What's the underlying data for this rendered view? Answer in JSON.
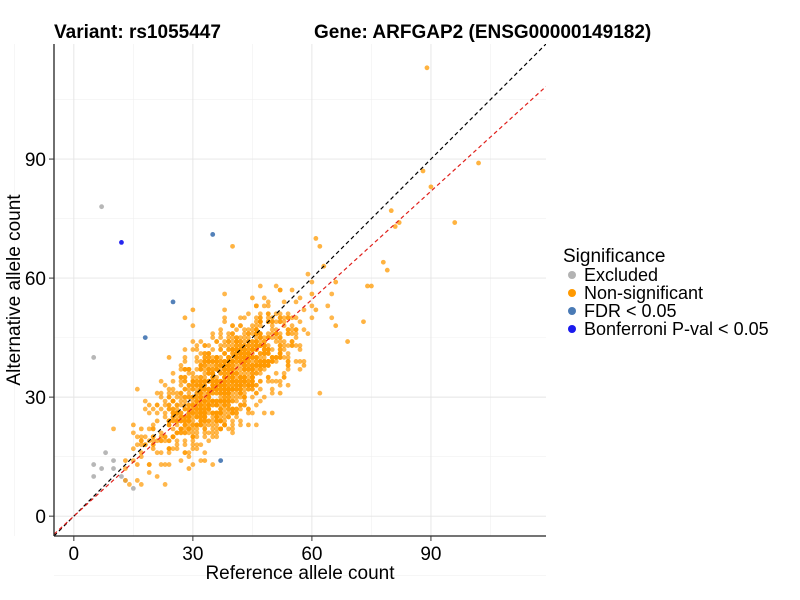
{
  "chart_data": {
    "type": "scatter",
    "title_left": "Variant: rs1055447",
    "title_right": "Gene: ARFGAP2 (ENSG00000149182)",
    "xlabel": "Reference allele count",
    "ylabel": "Alternative allele count",
    "xlim": [
      -5,
      119
    ],
    "ylim": [
      -5,
      119
    ],
    "xticks": [
      0,
      30,
      60,
      90
    ],
    "yticks": [
      0,
      30,
      60,
      90
    ],
    "grid": true,
    "legend": {
      "title": "Significance",
      "placement": "right",
      "entries": [
        {
          "label": "Excluded",
          "color": "#b3b3b3"
        },
        {
          "label": "Non-significant",
          "color": "#ff9900"
        },
        {
          "label": "FDR < 0.05",
          "color": "#4a7ab5"
        },
        {
          "label": "Bonferroni P-val < 0.05",
          "color": "#1a1aee"
        }
      ]
    },
    "reference_lines": [
      {
        "description": "identity",
        "slope": 1.0,
        "intercept": 0,
        "color": "#000000"
      },
      {
        "description": "fit",
        "slope": 0.91,
        "intercept": 0,
        "color": "#e0201b"
      }
    ],
    "series": [
      {
        "name": "Excluded",
        "color": "#b3b3b3",
        "points": [
          [
            7,
            78
          ],
          [
            5,
            40
          ],
          [
            8,
            16
          ],
          [
            5,
            13
          ],
          [
            5,
            10
          ],
          [
            7,
            12
          ],
          [
            10,
            12
          ],
          [
            12,
            10
          ],
          [
            13,
            9
          ],
          [
            15,
            7
          ],
          [
            10,
            14
          ]
        ]
      },
      {
        "name": "FDR < 0.05",
        "color": "#4a7ab5",
        "points": [
          [
            35,
            71
          ],
          [
            25,
            54
          ],
          [
            18,
            45
          ],
          [
            37,
            14
          ]
        ]
      },
      {
        "name": "Bonferroni P-val < 0.05",
        "color": "#1a1aee",
        "points": [
          [
            12,
            69
          ]
        ]
      },
      {
        "name": "Non-significant",
        "color": "#ff9900",
        "cloud": {
          "count": 1300,
          "x_mean": 38,
          "x_sd": 8.5,
          "y_mean": 34,
          "y_sd": 8.5,
          "correlation": 0.72
        },
        "points": [
          [
            89,
            113
          ],
          [
            102,
            89
          ],
          [
            90,
            83
          ],
          [
            96,
            74
          ],
          [
            88,
            87
          ],
          [
            80,
            77
          ],
          [
            82,
            74
          ],
          [
            81,
            73
          ],
          [
            78,
            64
          ],
          [
            74,
            58
          ],
          [
            79,
            62
          ],
          [
            73,
            49
          ],
          [
            75,
            58
          ],
          [
            66,
            59
          ],
          [
            63,
            63
          ],
          [
            61,
            70
          ],
          [
            62,
            68
          ],
          [
            40,
            68
          ],
          [
            55,
            46
          ],
          [
            66,
            48
          ],
          [
            61,
            52
          ],
          [
            69,
            44
          ],
          [
            21,
            24
          ],
          [
            22,
            20
          ],
          [
            20,
            17
          ],
          [
            15,
            23
          ],
          [
            13,
            14
          ],
          [
            29,
            12
          ],
          [
            17,
            22
          ],
          [
            16,
            13
          ],
          [
            24,
            17
          ],
          [
            33,
            14
          ],
          [
            47,
            38
          ],
          [
            52,
            31
          ],
          [
            58,
            38
          ],
          [
            45,
            55
          ],
          [
            28,
            50
          ],
          [
            30,
            52
          ],
          [
            55,
            44
          ],
          [
            60,
            56
          ],
          [
            24,
            40
          ],
          [
            27,
            35
          ],
          [
            19,
            28
          ],
          [
            32,
            24
          ],
          [
            44,
            23
          ],
          [
            50,
            26
          ]
        ]
      }
    ]
  }
}
